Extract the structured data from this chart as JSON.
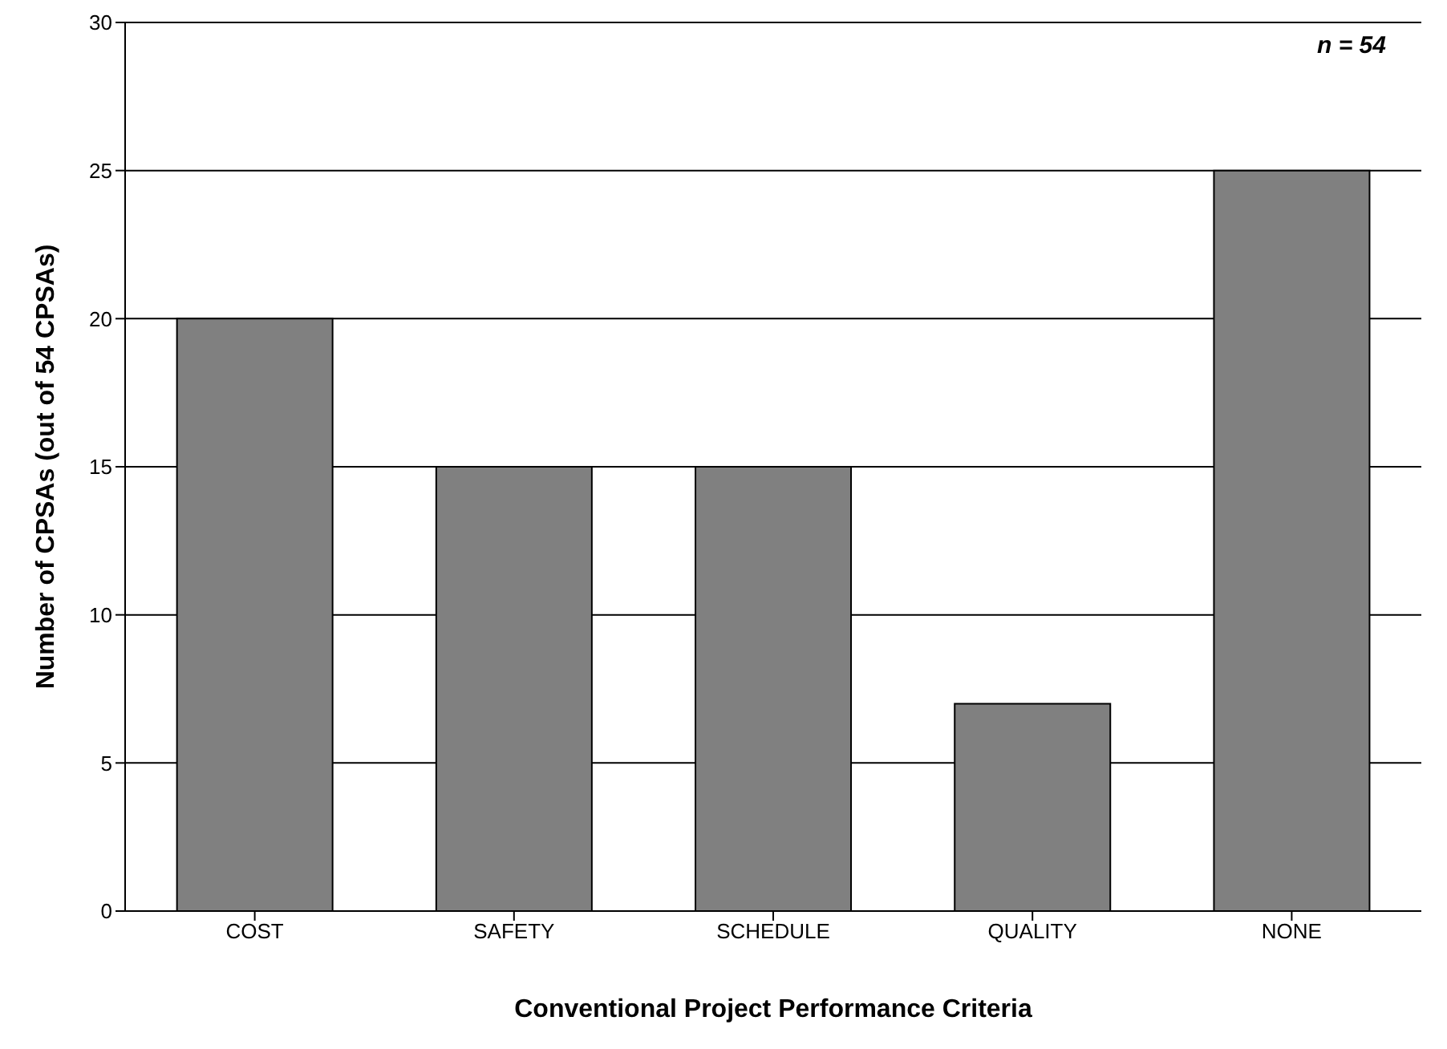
{
  "chart_data": {
    "type": "bar",
    "xlabel": "Conventional Project Performance Criteria",
    "ylabel": "Number of CPSAs (out of 54 CPSAs)",
    "categories": [
      "COST",
      "SAFETY",
      "SCHEDULE",
      "QUALITY",
      "NONE"
    ],
    "values": [
      20,
      15,
      15,
      7,
      25
    ],
    "color": "#808080",
    "ylim": [
      0,
      30
    ],
    "yticks": [
      0,
      5,
      10,
      15,
      20,
      25,
      30
    ],
    "grid": "y",
    "annotations": [
      "n = 54"
    ]
  }
}
